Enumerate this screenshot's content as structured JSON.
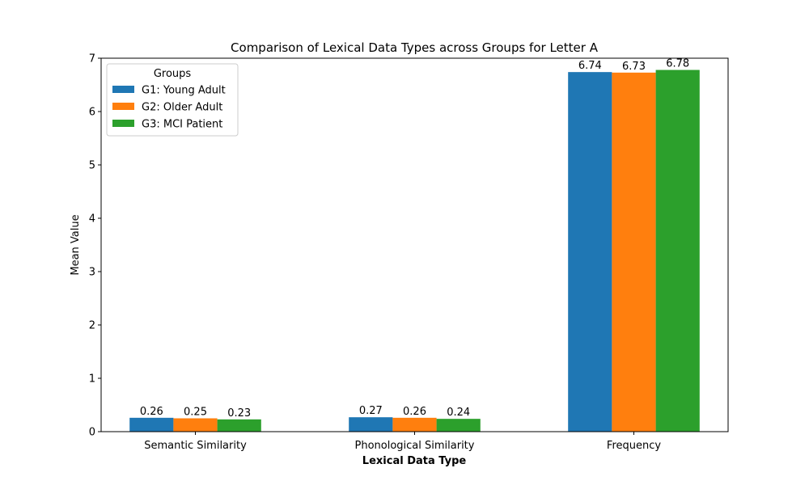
{
  "chart_data": {
    "type": "bar",
    "title": "Comparison of Lexical Data Types across Groups for Letter A",
    "xlabel": "Lexical Data Type",
    "ylabel": "Mean Value",
    "categories": [
      "Semantic Similarity",
      "Phonological Similarity",
      "Frequency"
    ],
    "series": [
      {
        "name": "G1: Young Adult",
        "values": [
          0.26,
          0.27,
          6.74
        ],
        "labels": [
          "0.26",
          "0.27",
          "6.74"
        ],
        "color": "#1f77b4"
      },
      {
        "name": "G2: Older Adult",
        "values": [
          0.25,
          0.26,
          6.73
        ],
        "labels": [
          "0.25",
          "0.26",
          "6.73"
        ],
        "color": "#ff7f0e"
      },
      {
        "name": "G3: MCI Patient",
        "values": [
          0.23,
          0.24,
          6.78
        ],
        "labels": [
          "0.23",
          "0.24",
          "6.78"
        ],
        "color": "#2ca02c"
      }
    ],
    "ylim": [
      0,
      7
    ],
    "yticks": [
      "0",
      "1",
      "2",
      "3",
      "4",
      "5",
      "6",
      "7"
    ],
    "grid": false,
    "legend": {
      "title": "Groups",
      "placement": "top-left"
    }
  }
}
